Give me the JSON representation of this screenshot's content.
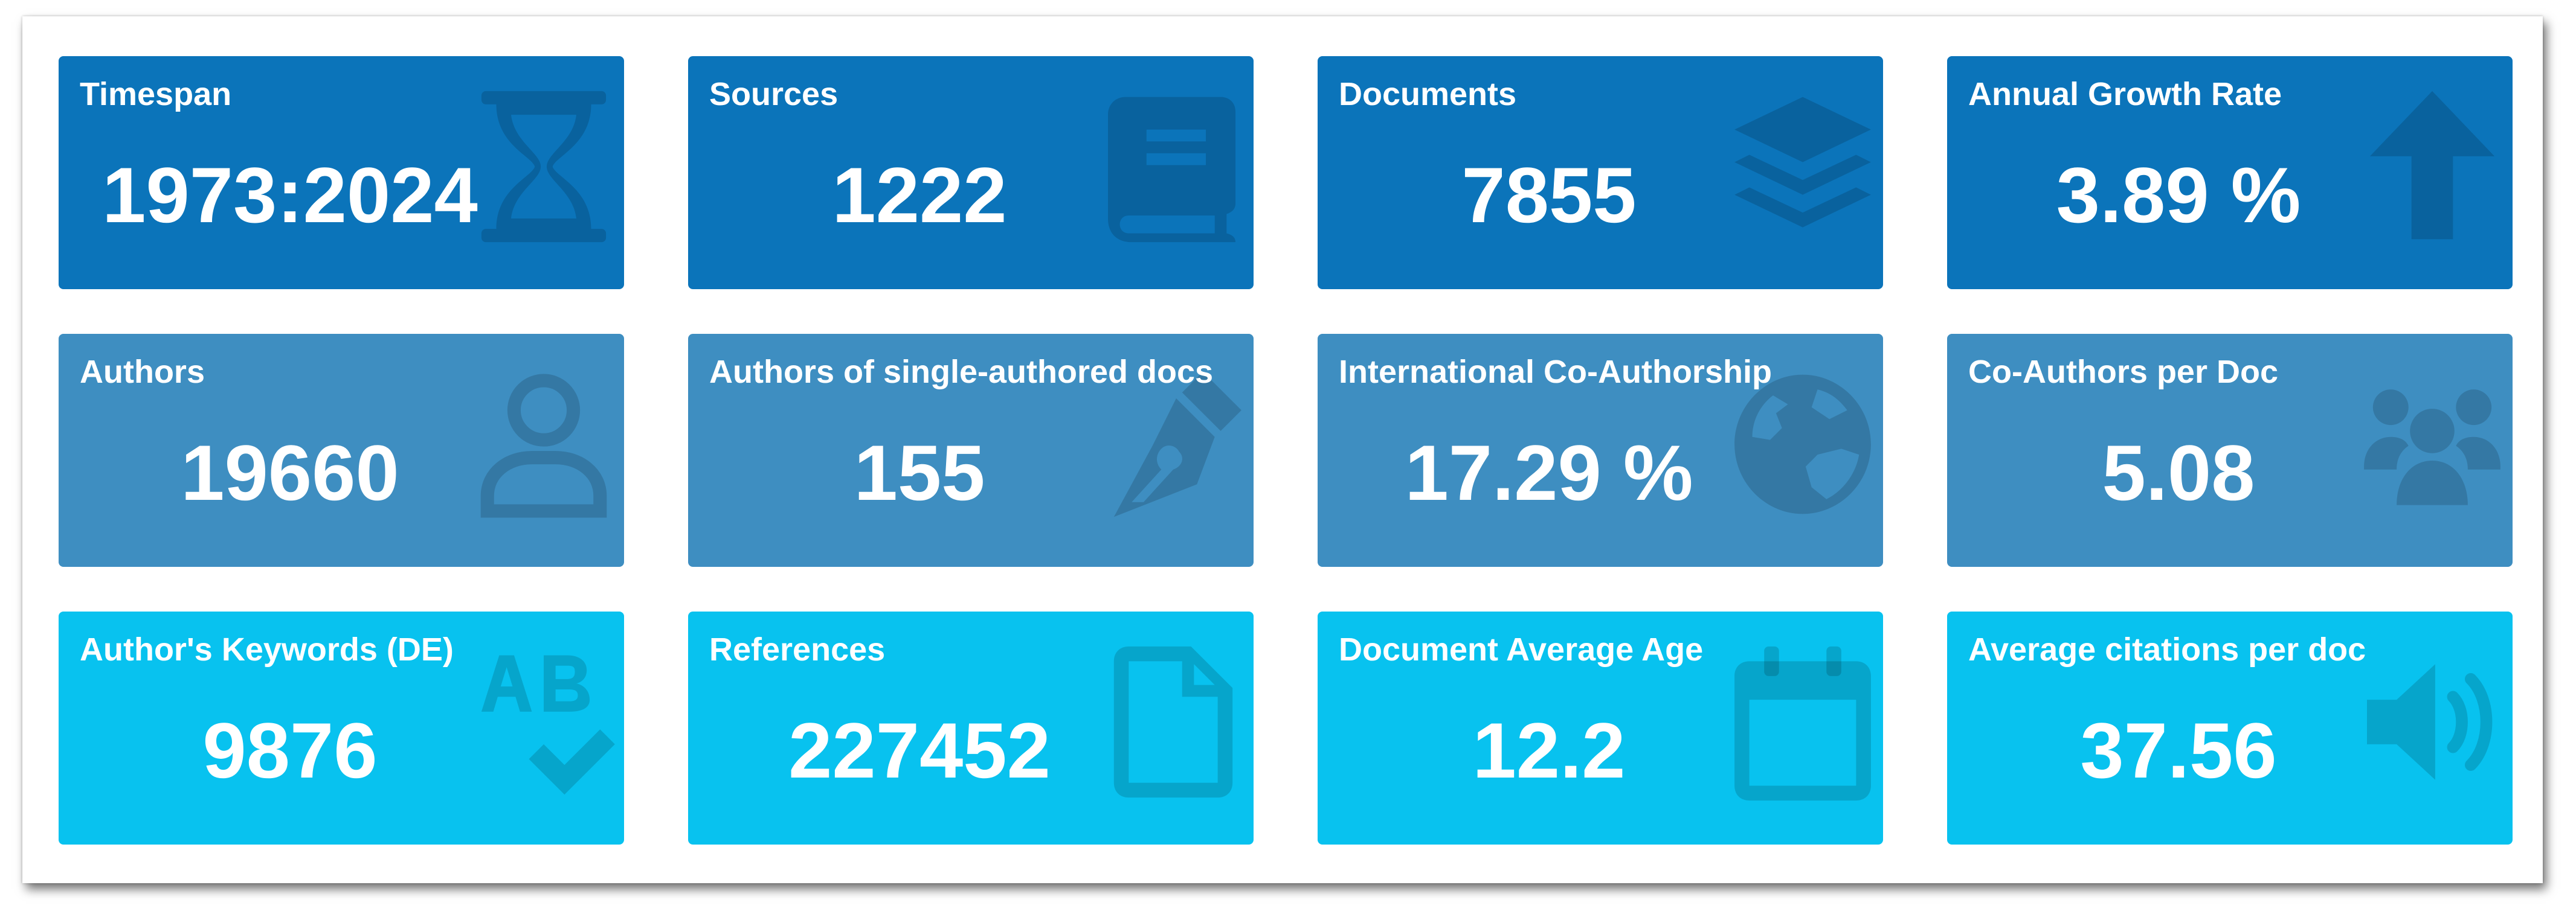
{
  "tiles": [
    {
      "label": "Timespan",
      "value": "1973:2024",
      "icon": "hourglass-icon",
      "tone": "dark"
    },
    {
      "label": "Sources",
      "value": "1222",
      "icon": "book-icon",
      "tone": "dark"
    },
    {
      "label": "Documents",
      "value": "7855",
      "icon": "layers-icon",
      "tone": "dark"
    },
    {
      "label": "Annual Growth Rate",
      "value": "3.89 %",
      "icon": "arrow-up-icon",
      "tone": "dark"
    },
    {
      "label": "Authors",
      "value": "19660",
      "icon": "user-icon",
      "tone": "mid"
    },
    {
      "label": "Authors of single-authored docs",
      "value": "155",
      "icon": "pen-nib-icon",
      "tone": "mid"
    },
    {
      "label": "International Co-Authorship",
      "value": "17.29 %",
      "icon": "globe-icon",
      "tone": "mid"
    },
    {
      "label": "Co-Authors per Doc",
      "value": "5.08",
      "icon": "users-icon",
      "tone": "mid"
    },
    {
      "label": "Author's Keywords (DE)",
      "value": "9876",
      "icon": "spell-check-icon",
      "tone": "light"
    },
    {
      "label": "References",
      "value": "227452",
      "icon": "file-icon",
      "tone": "light"
    },
    {
      "label": "Document Average Age",
      "value": "12.2",
      "icon": "calendar-icon",
      "tone": "light"
    },
    {
      "label": "Average citations per doc",
      "value": "37.56",
      "icon": "volume-icon",
      "tone": "light"
    }
  ],
  "colors": {
    "dark": "#0b74ba",
    "mid": "#3e8ec1",
    "light": "#08c2ef"
  }
}
